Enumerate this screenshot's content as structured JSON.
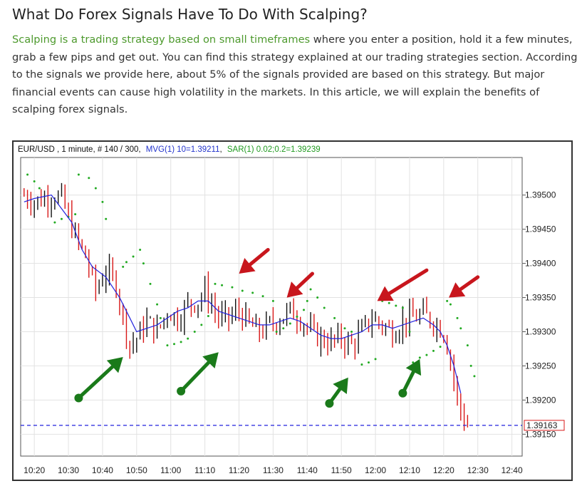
{
  "article": {
    "title": "What Do Forex Signals Have To Do With Scalping?",
    "link_text": "Scalping is a trading strategy based on small timeframes",
    "body_text": " where you enter a position, hold it a few minutes, grab a few pips and get out. You can find this strategy explained at our trading strategies section. According to the signals we provide here, about 5% of the signals provided are based on this strategy. But major financial events can cause high volatility in the markets. In this article, we will explain the benefits of scalping forex signals.",
    "link_color": "#4e9a2e"
  },
  "chart_data": {
    "type": "candlestick",
    "header": {
      "symbol_info": "EUR/USD , 1 minute, # 140 / 300,",
      "indicator_mvg": "MVG(1) 10=1.39211",
      "indicator_sar": "SAR(1) 0.02;0.2=1.39239"
    },
    "x_tick_labels": [
      "10:20",
      "10:30",
      "10:40",
      "10:50",
      "11:00",
      "11:10",
      "11:20",
      "11:30",
      "11:40",
      "11:50",
      "12:00",
      "12:10",
      "12:20",
      "12:30",
      "12:40"
    ],
    "x_ticks_minutes": [
      620,
      630,
      640,
      650,
      660,
      670,
      680,
      690,
      700,
      710,
      720,
      730,
      740,
      750,
      760
    ],
    "xlim_minutes": [
      616,
      763
    ],
    "y_tick_labels": [
      "1.39500",
      "1.39450",
      "1.39400",
      "1.39350",
      "1.39300",
      "1.39250",
      "1.39200",
      "1.39150"
    ],
    "y_ticks": [
      1.395,
      1.3945,
      1.394,
      1.3935,
      1.393,
      1.3925,
      1.392,
      1.3915
    ],
    "ylim": [
      1.39118,
      1.39555
    ],
    "last_price": 1.39163,
    "last_price_label": "1.39163",
    "grid": true,
    "colors": {
      "bull_candle": "#111111",
      "bear_candle": "#d81818",
      "mvg_line": "#2222dd",
      "sar_dots": "#22aa22",
      "header_mvg": "#2233cc",
      "header_sar": "#1f9a1f",
      "price_line": "#2222dd",
      "sell_arrow": "#c8161d",
      "buy_arrow": "#1a7a1a"
    },
    "close_path": [
      [
        617,
        1.395
      ],
      [
        620,
        1.3949
      ],
      [
        625,
        1.395
      ],
      [
        628,
        1.39495
      ],
      [
        632,
        1.3944
      ],
      [
        635,
        1.3941
      ],
      [
        638,
        1.3936
      ],
      [
        641,
        1.3939
      ],
      [
        644,
        1.3937
      ],
      [
        646,
        1.3932
      ],
      [
        648,
        1.3928
      ],
      [
        650,
        1.3929
      ],
      [
        653,
        1.39315
      ],
      [
        656,
        1.393
      ],
      [
        659,
        1.3933
      ],
      [
        662,
        1.3932
      ],
      [
        665,
        1.3934
      ],
      [
        668,
        1.39345
      ],
      [
        670,
        1.3936
      ],
      [
        672,
        1.3934
      ],
      [
        674,
        1.3932
      ],
      [
        677,
        1.3932
      ],
      [
        680,
        1.3933
      ],
      [
        683,
        1.3931
      ],
      [
        686,
        1.393
      ],
      [
        689,
        1.3931
      ],
      [
        692,
        1.3932
      ],
      [
        695,
        1.3933
      ],
      [
        698,
        1.3932
      ],
      [
        701,
        1.393
      ],
      [
        704,
        1.3929
      ],
      [
        707,
        1.39285
      ],
      [
        710,
        1.3929
      ],
      [
        713,
        1.3928
      ],
      [
        716,
        1.393
      ],
      [
        719,
        1.3932
      ],
      [
        722,
        1.3931
      ],
      [
        725,
        1.393
      ],
      [
        728,
        1.39315
      ],
      [
        731,
        1.3932
      ],
      [
        734,
        1.39325
      ],
      [
        737,
        1.39315
      ],
      [
        740,
        1.393
      ],
      [
        742,
        1.3926
      ],
      [
        744,
        1.392
      ],
      [
        746,
        1.3917
      ],
      [
        747,
        1.39163
      ]
    ],
    "mvg_series": [
      [
        617,
        1.3949
      ],
      [
        620,
        1.39495
      ],
      [
        625,
        1.395
      ],
      [
        628,
        1.3948
      ],
      [
        631,
        1.3946
      ],
      [
        634,
        1.3942
      ],
      [
        637,
        1.39395
      ],
      [
        641,
        1.3938
      ],
      [
        645,
        1.3935
      ],
      [
        648,
        1.3932
      ],
      [
        650,
        1.393
      ],
      [
        653,
        1.39305
      ],
      [
        656,
        1.3931
      ],
      [
        659,
        1.3932
      ],
      [
        662,
        1.3933
      ],
      [
        665,
        1.39335
      ],
      [
        668,
        1.39345
      ],
      [
        671,
        1.39345
      ],
      [
        674,
        1.3933
      ],
      [
        677,
        1.39325
      ],
      [
        680,
        1.3932
      ],
      [
        683,
        1.39315
      ],
      [
        686,
        1.3931
      ],
      [
        689,
        1.3931
      ],
      [
        692,
        1.39315
      ],
      [
        695,
        1.3932
      ],
      [
        698,
        1.39315
      ],
      [
        701,
        1.39305
      ],
      [
        704,
        1.39295
      ],
      [
        707,
        1.3929
      ],
      [
        710,
        1.3929
      ],
      [
        713,
        1.39295
      ],
      [
        716,
        1.393
      ],
      [
        719,
        1.3931
      ],
      [
        722,
        1.3931
      ],
      [
        725,
        1.39305
      ],
      [
        728,
        1.3931
      ],
      [
        731,
        1.39315
      ],
      [
        734,
        1.3932
      ],
      [
        737,
        1.3931
      ],
      [
        739,
        1.393
      ],
      [
        741,
        1.3928
      ],
      [
        743,
        1.3925
      ],
      [
        745,
        1.3921
      ]
    ],
    "sar_series": [
      [
        618,
        1.3953
      ],
      [
        620,
        1.3952
      ],
      [
        621.5,
        1.3951
      ],
      [
        626,
        1.3946
      ],
      [
        628,
        1.39465
      ],
      [
        630,
        1.39468
      ],
      [
        632,
        1.39472
      ],
      [
        633,
        1.3953
      ],
      [
        636,
        1.39525
      ],
      [
        638,
        1.3951
      ],
      [
        640,
        1.3949
      ],
      [
        641,
        1.39465
      ],
      [
        646,
        1.39395
      ],
      [
        647,
        1.39402
      ],
      [
        649,
        1.3941
      ],
      [
        651,
        1.3942
      ],
      [
        652,
        1.394
      ],
      [
        654,
        1.3937
      ],
      [
        656,
        1.3934
      ],
      [
        657,
        1.3932
      ],
      [
        659,
        1.3928
      ],
      [
        661,
        1.39282
      ],
      [
        663,
        1.39285
      ],
      [
        665,
        1.3929
      ],
      [
        667,
        1.393
      ],
      [
        669,
        1.3931
      ],
      [
        671,
        1.39323
      ],
      [
        673,
        1.3937
      ],
      [
        675,
        1.39368
      ],
      [
        678,
        1.39365
      ],
      [
        681,
        1.3936
      ],
      [
        684,
        1.39357
      ],
      [
        687,
        1.39352
      ],
      [
        690,
        1.39345
      ],
      [
        691,
        1.393
      ],
      [
        693,
        1.39305
      ],
      [
        695,
        1.39312
      ],
      [
        697,
        1.39322
      ],
      [
        699,
        1.39332
      ],
      [
        700,
        1.39345
      ],
      [
        701,
        1.39362
      ],
      [
        703,
        1.3935
      ],
      [
        705,
        1.39335
      ],
      [
        708,
        1.3932
      ],
      [
        711,
        1.39305
      ],
      [
        713,
        1.393
      ],
      [
        716,
        1.39252
      ],
      [
        718,
        1.39255
      ],
      [
        720,
        1.3926
      ],
      [
        722,
        1.39345
      ],
      [
        724,
        1.39342
      ],
      [
        726,
        1.39338
      ],
      [
        728,
        1.39335
      ],
      [
        730,
        1.393
      ],
      [
        731,
        1.39255
      ],
      [
        733,
        1.39262
      ],
      [
        735,
        1.39266
      ],
      [
        737,
        1.39272
      ],
      [
        739,
        1.39278
      ],
      [
        741,
        1.39345
      ],
      [
        742,
        1.3934
      ],
      [
        744,
        1.3932
      ],
      [
        745,
        1.39305
      ],
      [
        747,
        1.3928
      ],
      [
        748,
        1.3925
      ],
      [
        749,
        1.39235
      ]
    ],
    "sell_arrows": [
      {
        "x1": 688.5,
        "y1": 1.3942,
        "x2": 680,
        "y2": 1.39385
      },
      {
        "x1": 701.5,
        "y1": 1.39385,
        "x2": 694,
        "y2": 1.3935
      },
      {
        "x1": 735,
        "y1": 1.3939,
        "x2": 720.5,
        "y2": 1.39345
      },
      {
        "x1": 750,
        "y1": 1.3938,
        "x2": 741.5,
        "y2": 1.3935
      }
    ],
    "buy_arrows": [
      {
        "x1": 633,
        "y1": 1.39203,
        "x2": 646,
        "y2": 1.39263
      },
      {
        "x1": 663,
        "y1": 1.39213,
        "x2": 674,
        "y2": 1.3927
      },
      {
        "x1": 706.5,
        "y1": 1.39195,
        "x2": 712,
        "y2": 1.39233
      },
      {
        "x1": 728,
        "y1": 1.3921,
        "x2": 733,
        "y2": 1.3926
      }
    ]
  }
}
